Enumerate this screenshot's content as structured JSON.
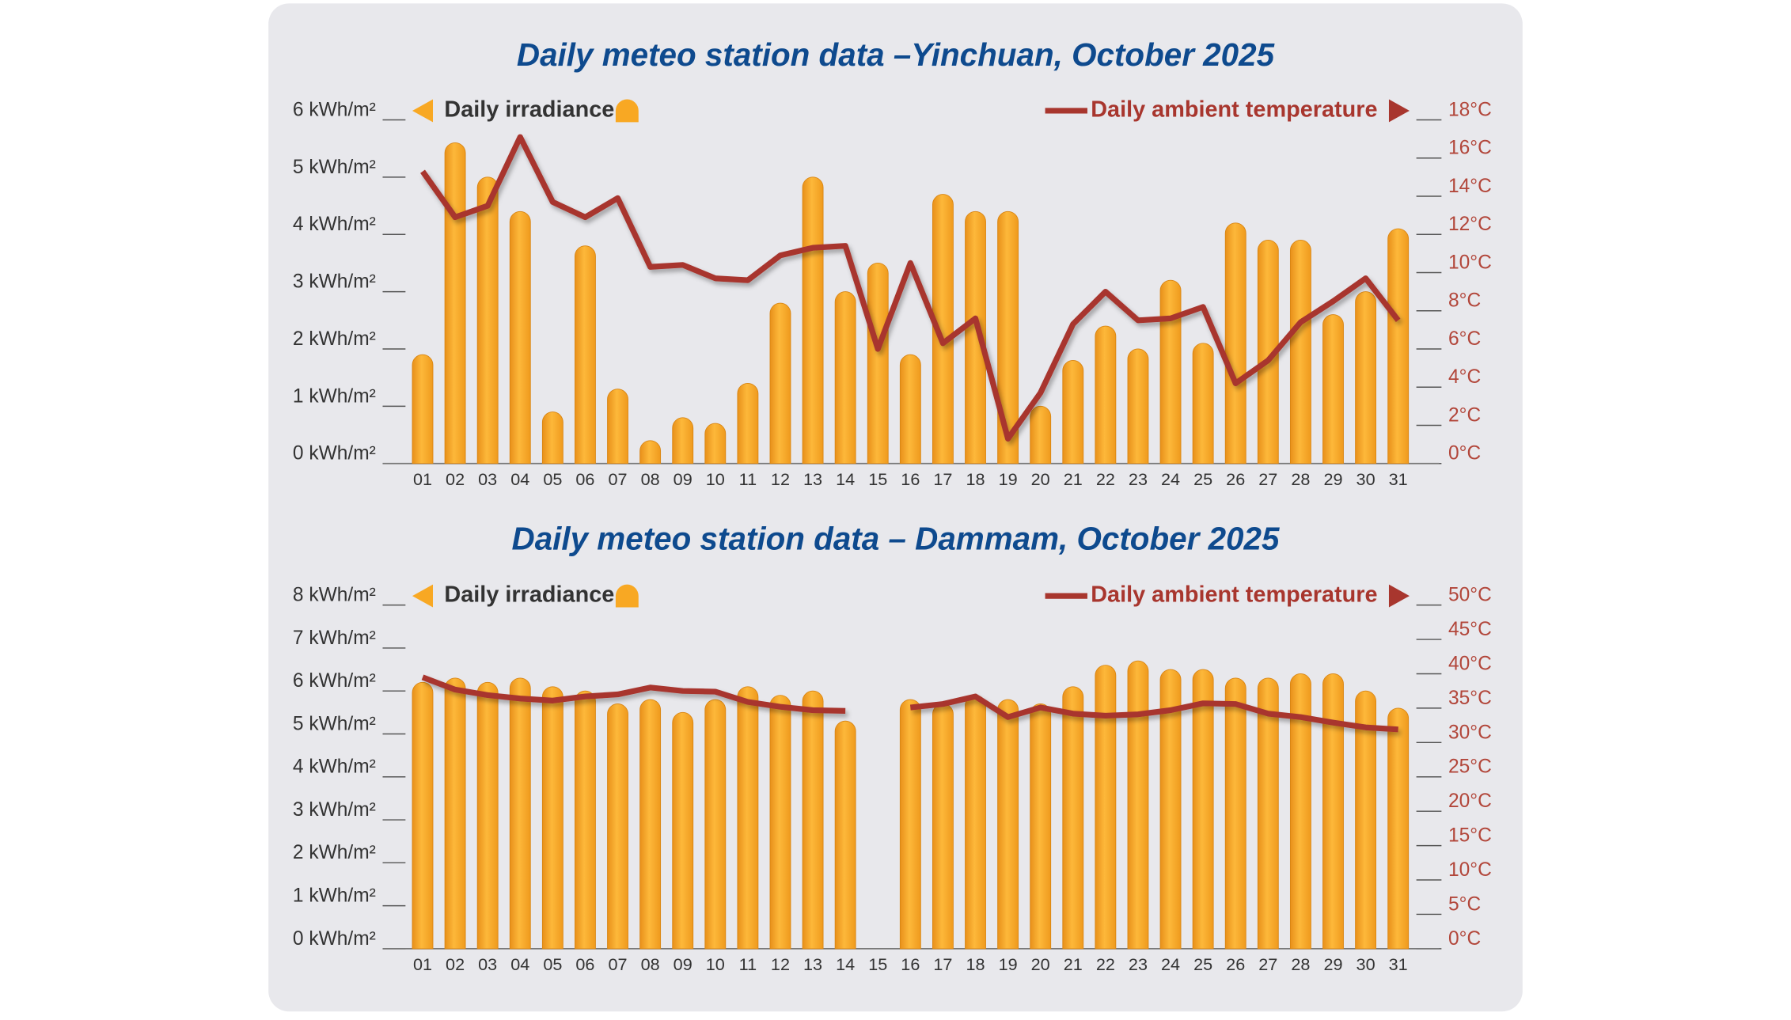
{
  "chart_data": [
    {
      "type": "combo",
      "title": "Daily meteo station data –Yinchuan, October 2025",
      "categories": [
        "01",
        "02",
        "03",
        "04",
        "05",
        "06",
        "07",
        "08",
        "09",
        "10",
        "11",
        "12",
        "13",
        "14",
        "15",
        "16",
        "17",
        "18",
        "19",
        "20",
        "21",
        "22",
        "23",
        "24",
        "25",
        "26",
        "27",
        "28",
        "29",
        "30",
        "31"
      ],
      "series": [
        {
          "name": "Daily irradiance",
          "color": "#f8a823",
          "values": [
            1.9,
            5.6,
            5.0,
            4.4,
            0.9,
            3.8,
            1.3,
            0.4,
            0.8,
            0.7,
            1.4,
            2.8,
            5.0,
            3.0,
            3.5,
            1.9,
            4.7,
            4.4,
            4.4,
            1.0,
            1.8,
            2.4,
            2.0,
            3.2,
            2.1,
            4.2,
            3.9,
            3.9,
            2.6,
            3.0,
            4.1
          ]
        },
        {
          "name": "Daily ambient temperature",
          "color": "#a8362e",
          "axis": "y2",
          "values": [
            15.3,
            12.9,
            13.5,
            17.1,
            13.7,
            12.9,
            13.9,
            10.3,
            10.4,
            9.7,
            9.6,
            10.9,
            11.3,
            11.4,
            6.0,
            10.5,
            6.3,
            7.6,
            1.3,
            3.7,
            7.3,
            9.0,
            7.5,
            7.6,
            8.2,
            4.2,
            5.4,
            7.4,
            8.5,
            9.7,
            7.5
          ]
        }
      ],
      "ylim": [
        0,
        6
      ],
      "yticks": [
        {
          "value": 0,
          "label": "0 kWh/m²"
        },
        {
          "value": 1,
          "label": "1 kWh/m²"
        },
        {
          "value": 2,
          "label": "2 kWh/m²"
        },
        {
          "value": 3,
          "label": "3 kWh/m²"
        },
        {
          "value": 4,
          "label": "4 kWh/m²"
        },
        {
          "value": 5,
          "label": "5 kWh/m²"
        },
        {
          "value": 6,
          "label": "6 kWh/m²"
        }
      ],
      "y2lim": [
        0,
        18
      ],
      "y2ticks": [
        {
          "value": 0,
          "label": "0°C"
        },
        {
          "value": 2,
          "label": "2°C"
        },
        {
          "value": 4,
          "label": "4°C"
        },
        {
          "value": 6,
          "label": "6°C"
        },
        {
          "value": 8,
          "label": "8°C"
        },
        {
          "value": 10,
          "label": "10°C"
        },
        {
          "value": 12,
          "label": "12°C"
        },
        {
          "value": 14,
          "label": "14°C"
        },
        {
          "value": 16,
          "label": "16°C"
        },
        {
          "value": 18,
          "label": "18°C"
        }
      ]
    },
    {
      "type": "combo",
      "title": "Daily meteo station data – Dammam, October 2025",
      "categories": [
        "01",
        "02",
        "03",
        "04",
        "05",
        "06",
        "07",
        "08",
        "09",
        "10",
        "11",
        "12",
        "13",
        "14",
        "15",
        "16",
        "17",
        "18",
        "19",
        "20",
        "21",
        "22",
        "23",
        "24",
        "25",
        "26",
        "27",
        "28",
        "29",
        "30",
        "31"
      ],
      "series": [
        {
          "name": "Daily irradiance",
          "color": "#f8a823",
          "values": [
            6.2,
            6.3,
            6.2,
            6.3,
            6.1,
            6.0,
            5.7,
            5.8,
            5.5,
            5.8,
            6.1,
            5.9,
            6.0,
            5.3,
            null,
            5.8,
            5.7,
            5.9,
            5.8,
            5.7,
            6.1,
            6.6,
            6.7,
            6.5,
            6.5,
            6.3,
            6.3,
            6.4,
            6.4,
            6.0,
            5.6
          ]
        },
        {
          "name": "Daily ambient temperature",
          "color": "#a8362e",
          "axis": "y2",
          "values": [
            39.5,
            37.7,
            36.9,
            36.4,
            36.1,
            36.7,
            37.0,
            38.0,
            37.5,
            37.4,
            35.9,
            35.2,
            34.7,
            34.6,
            null,
            35.1,
            35.6,
            36.7,
            33.7,
            35.1,
            34.2,
            33.9,
            34.1,
            34.7,
            35.7,
            35.6,
            34.2,
            33.7,
            32.9,
            32.2,
            31.9
          ]
        }
      ],
      "ylim": [
        0,
        8
      ],
      "yticks": [
        {
          "value": 0,
          "label": "0 kWh/m²"
        },
        {
          "value": 1,
          "label": "1 kWh/m²"
        },
        {
          "value": 2,
          "label": "2 kWh/m²"
        },
        {
          "value": 3,
          "label": "3 kWh/m²"
        },
        {
          "value": 4,
          "label": "4 kWh/m²"
        },
        {
          "value": 5,
          "label": "5 kWh/m²"
        },
        {
          "value": 6,
          "label": "6 kWh/m²"
        },
        {
          "value": 7,
          "label": "7 kWh/m²"
        },
        {
          "value": 8,
          "label": "8 kWh/m²"
        }
      ],
      "y2lim": [
        0,
        50
      ],
      "y2ticks": [
        {
          "value": 0,
          "label": "0°C"
        },
        {
          "value": 5,
          "label": "5°C"
        },
        {
          "value": 10,
          "label": "10°C"
        },
        {
          "value": 15,
          "label": "15°C"
        },
        {
          "value": 20,
          "label": "20°C"
        },
        {
          "value": 25,
          "label": "25°C"
        },
        {
          "value": 30,
          "label": "30°C"
        },
        {
          "value": 35,
          "label": "35°C"
        },
        {
          "value": 40,
          "label": "40°C"
        },
        {
          "value": 45,
          "label": "45°C"
        },
        {
          "value": 50,
          "label": "50°C"
        }
      ]
    }
  ]
}
